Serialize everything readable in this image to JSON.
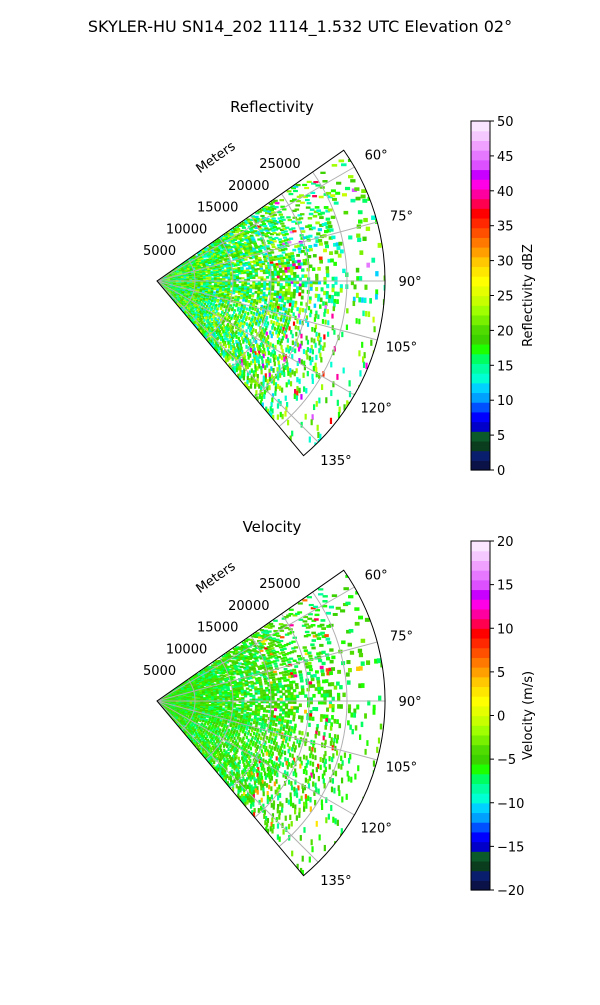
{
  "figure": {
    "suptitle": "SKYLER-HU  SN14_202  1114_1.532 UTC Elevation 02°"
  },
  "chart_data": [
    {
      "type": "heatmap",
      "subtype": "polar-sector",
      "title": "Reflectivity",
      "radial_label": "Meters",
      "radial_ticks": [
        "5000",
        "10000",
        "15000",
        "20000",
        "25000"
      ],
      "radial_tick_values": [
        5000,
        10000,
        15000,
        20000,
        25000
      ],
      "r_max": 30000,
      "theta_ticks": [
        "60°",
        "75°",
        "90°",
        "105°",
        "120°",
        "135°"
      ],
      "theta_tick_values": [
        60,
        75,
        90,
        105,
        120,
        135
      ],
      "theta_range": [
        55,
        140
      ],
      "grid": true,
      "colorbar": {
        "label": "Reflectivity dBZ",
        "range": [
          0,
          50
        ],
        "ticks": [
          "0",
          "5",
          "10",
          "15",
          "20",
          "25",
          "30",
          "35",
          "40",
          "45",
          "50"
        ],
        "tick_values": [
          0,
          5,
          10,
          15,
          20,
          25,
          30,
          35,
          40,
          45,
          50
        ],
        "colors": [
          "#0a1248",
          "#0a1e6e",
          "#0a3c1e",
          "#0a5a2a",
          "#0000c8",
          "#0000ff",
          "#0050ff",
          "#00a0ff",
          "#00d2ff",
          "#00ffd2",
          "#00ffa0",
          "#00ff60",
          "#1eff00",
          "#3cd200",
          "#50dc00",
          "#78f000",
          "#a0ff00",
          "#c8ff00",
          "#e6ff00",
          "#ffff00",
          "#ffe600",
          "#ffc800",
          "#ffa000",
          "#ff7800",
          "#ff5000",
          "#ff2800",
          "#ff0000",
          "#ff0050",
          "#ff00a0",
          "#ff00e6",
          "#c800ff",
          "#dc50ff",
          "#e678ff",
          "#f0a0ff",
          "#f5c8ff",
          "#fbe6ff"
        ]
      },
      "field_summary": {
        "dominant_values": [
          12,
          24
        ],
        "dominant_colors": [
          "#00ffa0",
          "#3cd200",
          "#a0ff00"
        ],
        "hotspot_values": [
          35,
          45
        ]
      }
    },
    {
      "type": "heatmap",
      "subtype": "polar-sector",
      "title": "Velocity",
      "radial_label": "Meters",
      "radial_ticks": [
        "5000",
        "10000",
        "15000",
        "20000",
        "25000"
      ],
      "radial_tick_values": [
        5000,
        10000,
        15000,
        20000,
        25000
      ],
      "r_max": 30000,
      "theta_ticks": [
        "60°",
        "75°",
        "90°",
        "105°",
        "120°",
        "135°"
      ],
      "theta_tick_values": [
        60,
        75,
        90,
        105,
        120,
        135
      ],
      "theta_range": [
        55,
        140
      ],
      "grid": true,
      "colorbar": {
        "label": "Velocity (m/s)",
        "range": [
          -20,
          20
        ],
        "ticks": [
          "−20",
          "−15",
          "−10",
          "−5",
          "0",
          "5",
          "10",
          "15",
          "20"
        ],
        "tick_values": [
          -20,
          -15,
          -10,
          -5,
          0,
          5,
          10,
          15,
          20
        ],
        "colors": [
          "#0a1248",
          "#0a1e6e",
          "#0a3c1e",
          "#0a5a2a",
          "#0000c8",
          "#0000ff",
          "#0050ff",
          "#00a0ff",
          "#00d2ff",
          "#00ffd2",
          "#00ffa0",
          "#00ff60",
          "#1eff00",
          "#3cd200",
          "#50dc00",
          "#78f000",
          "#a0ff00",
          "#c8ff00",
          "#e6ff00",
          "#ffff00",
          "#ffe600",
          "#ffc800",
          "#ffa000",
          "#ff7800",
          "#ff5000",
          "#ff2800",
          "#ff0000",
          "#ff0050",
          "#ff00a0",
          "#ff00e6",
          "#c800ff",
          "#dc50ff",
          "#e678ff",
          "#f0a0ff",
          "#f5c8ff",
          "#fbe6ff"
        ]
      },
      "field_summary": {
        "dominant_values": [
          -8,
          -3
        ],
        "dominant_colors": [
          "#1eff00",
          "#78f000",
          "#ffff00"
        ],
        "hotspot_values": [
          3,
          12
        ]
      }
    }
  ]
}
